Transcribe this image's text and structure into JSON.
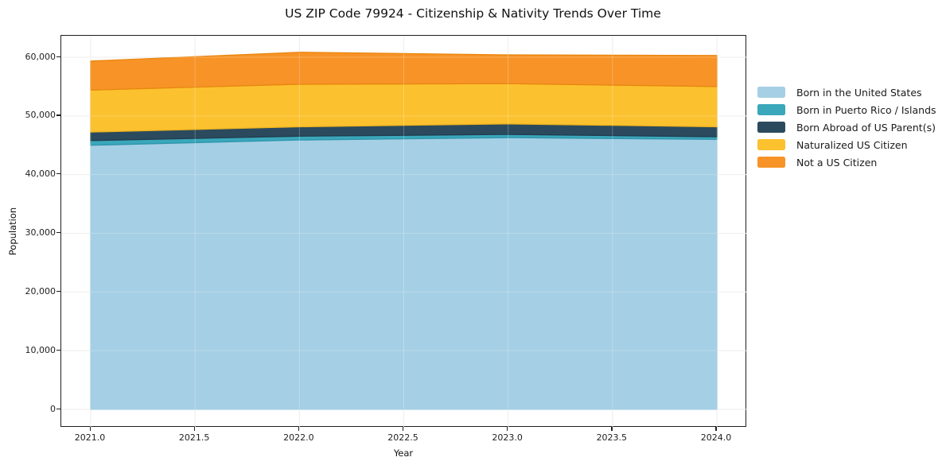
{
  "title": "US ZIP Code 79924 - Citizenship & Nativity Trends Over Time",
  "chart_data": {
    "type": "area",
    "stacked": true,
    "title": "US ZIP Code 79924 - Citizenship & Nativity Trends Over Time",
    "xlabel": "Year",
    "ylabel": "Population",
    "x": [
      2021,
      2022,
      2023,
      2024
    ],
    "series": [
      {
        "name": "Born in the United States",
        "color": "#a5cfe5",
        "edge": "#93c4de",
        "values": [
          45000,
          45900,
          46300,
          46000
        ]
      },
      {
        "name": "Born in Puerto Rico / Islands",
        "color": "#3aa7bb",
        "edge": "#2f96ab",
        "values": [
          800,
          650,
          550,
          450
        ]
      },
      {
        "name": "Born Abroad of US Parent(s)",
        "color": "#2b4a5e",
        "edge": "#223c4d",
        "values": [
          1450,
          1600,
          1800,
          1700
        ]
      },
      {
        "name": "Naturalized US Citizen",
        "color": "#fcc12f",
        "edge": "#eeb31f",
        "values": [
          7150,
          7250,
          6850,
          6850
        ]
      },
      {
        "name": "Not a US Citizen",
        "color": "#f79327",
        "edge": "#e8860f",
        "values": [
          4950,
          5450,
          4900,
          5300
        ]
      }
    ],
    "totals": [
      59350,
      60850,
      60400,
      60300
    ],
    "xlim": [
      2020.85,
      2024.15
    ],
    "ylim": [
      -3050,
      63900
    ],
    "x_ticks": {
      "values": [
        2021.0,
        2021.5,
        2022.0,
        2022.5,
        2023.0,
        2023.5,
        2024.0
      ],
      "labels": [
        "2021.0",
        "2021.5",
        "2022.0",
        "2022.5",
        "2023.0",
        "2023.5",
        "2024.0"
      ]
    },
    "y_ticks": {
      "values": [
        0,
        10000,
        20000,
        30000,
        40000,
        50000,
        60000
      ],
      "labels": [
        "0",
        "10,000",
        "20,000",
        "30,000",
        "40,000",
        "50,000",
        "60,000"
      ]
    },
    "grid": true,
    "grid_color": "#e8e8e8",
    "legend_position": "right-outside"
  }
}
